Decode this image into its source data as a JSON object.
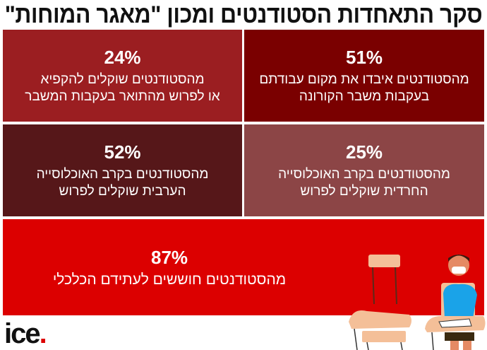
{
  "title": "סקר התאחדות הסטודנטים ומכון \"מאגר המוחות\"",
  "stats": [
    {
      "value": "51%",
      "lines": [
        "מהסטודנטים איבדו את מקום עבודתם",
        "בעקבות משבר הקורונה"
      ]
    },
    {
      "value": "24%",
      "lines": [
        "מהסטודנטים שוקלים להקפיא",
        "או לפרוש מהתואר בעקבות המשבר"
      ]
    },
    {
      "value": "25%",
      "lines": [
        "מהסטודנטים בקרב האוכלוסייה",
        "החרדית שוקלים לפרוש"
      ]
    },
    {
      "value": "52%",
      "lines": [
        "מהסטודנטים בקרב האוכלוסייה",
        "הערבית שוקלים לפרוש"
      ]
    },
    {
      "value": "87%",
      "lines": [
        "מהסטודנטים חוששים לעתידם הכלכלי"
      ]
    }
  ],
  "logo": {
    "text": "ice",
    "dot": "."
  },
  "colors": {
    "box1": "#7a0000",
    "box2": "#9b1e21",
    "box3": "#8c4546",
    "box4": "#561719",
    "box5": "#dc0000"
  }
}
